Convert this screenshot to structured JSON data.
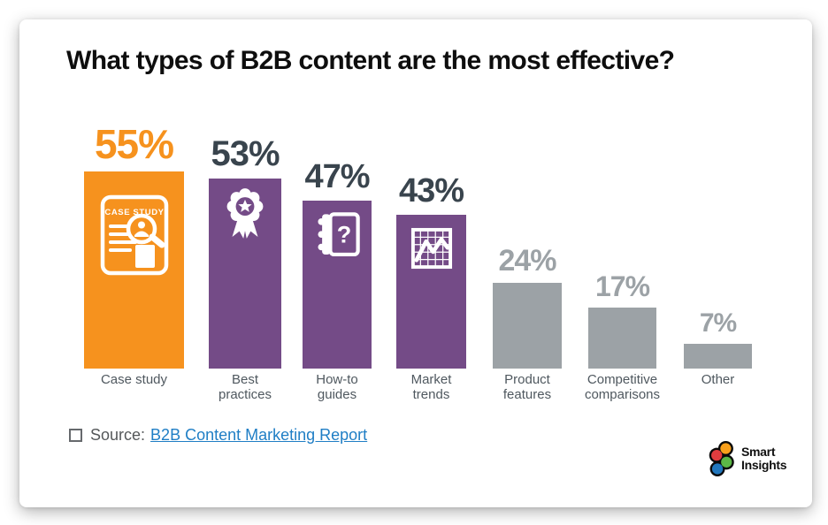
{
  "chart_data": {
    "type": "bar",
    "title": "What types of B2B content are the most effective?",
    "unit": "%",
    "categories": [
      "Case study",
      "Best practices",
      "How-to guides",
      "Market trends",
      "Product features",
      "Competitive comparisons",
      "Other"
    ],
    "category_lines": [
      [
        "Case study"
      ],
      [
        "Best",
        "practices"
      ],
      [
        "How-to",
        "guides"
      ],
      [
        "Market",
        "trends"
      ],
      [
        "Product",
        "features"
      ],
      [
        "Competitive",
        "comparisons"
      ],
      [
        "Other"
      ]
    ],
    "values": [
      55,
      53,
      47,
      43,
      24,
      17,
      7
    ],
    "bar_colors": [
      "#F6921E",
      "#744B87",
      "#744B87",
      "#744B87",
      "#9CA2A6",
      "#9CA2A6",
      "#9CA2A6"
    ],
    "value_label_colors": [
      "#F6921E",
      "#39444D",
      "#39444D",
      "#39444D",
      "#9CA2A6",
      "#9CA2A6",
      "#9CA2A6"
    ],
    "icons": [
      "case-study-document-magnifier-icon",
      "best-practices-award-ribbon-icon",
      "how-to-guides-notebook-icon",
      "market-trends-graph-icon",
      null,
      null,
      null
    ],
    "ylim": [
      0,
      60
    ],
    "grid": false,
    "legend": false
  },
  "source": {
    "label": "Source:",
    "link": "B2B Content Marketing Report",
    "link_color": "#1F7EC5",
    "text_color": "#55585a"
  },
  "logo": {
    "name": "Smart Insights",
    "line1": "Smart",
    "line2": "Insights",
    "colors": {
      "orange": "#F9A01B",
      "red": "#E03C3F",
      "green": "#5CB847",
      "blue": "#2277BD",
      "outline": "#0b0b0b"
    }
  },
  "colors": {
    "accent_orange": "#F6921E",
    "purple": "#744B87",
    "gray": "#9CA2A6",
    "dark_value_label": "#39444D",
    "category_label": "#4f585f",
    "title_text": "#0e0e0e"
  }
}
